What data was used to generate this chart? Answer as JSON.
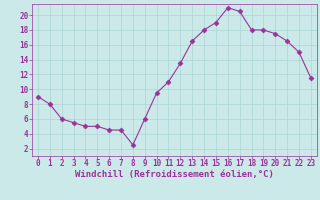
{
  "x": [
    0,
    1,
    2,
    3,
    4,
    5,
    6,
    7,
    8,
    9,
    10,
    11,
    12,
    13,
    14,
    15,
    16,
    17,
    18,
    19,
    20,
    21,
    22,
    23
  ],
  "y": [
    9,
    8,
    6,
    5.5,
    5,
    5,
    4.5,
    4.5,
    2.5,
    6,
    9.5,
    11,
    13.5,
    16.5,
    18,
    19,
    21,
    20.5,
    18,
    18,
    17.5,
    16.5,
    15,
    11.5
  ],
  "line_color": "#993399",
  "marker": "D",
  "marker_size": 2.5,
  "bg_color": "#cce9e9",
  "grid_color": "#aad4d4",
  "xlabel": "Windchill (Refroidissement éolien,°C)",
  "xlim": [
    -0.5,
    23.5
  ],
  "ylim": [
    1,
    21.5
  ],
  "yticks": [
    2,
    4,
    6,
    8,
    10,
    12,
    14,
    16,
    18,
    20
  ],
  "xticks": [
    0,
    1,
    2,
    3,
    4,
    5,
    6,
    7,
    8,
    9,
    10,
    11,
    12,
    13,
    14,
    15,
    16,
    17,
    18,
    19,
    20,
    21,
    22,
    23
  ],
  "tick_color": "#993399",
  "label_color": "#993399",
  "label_fontsize": 6.5,
  "tick_fontsize": 5.5
}
